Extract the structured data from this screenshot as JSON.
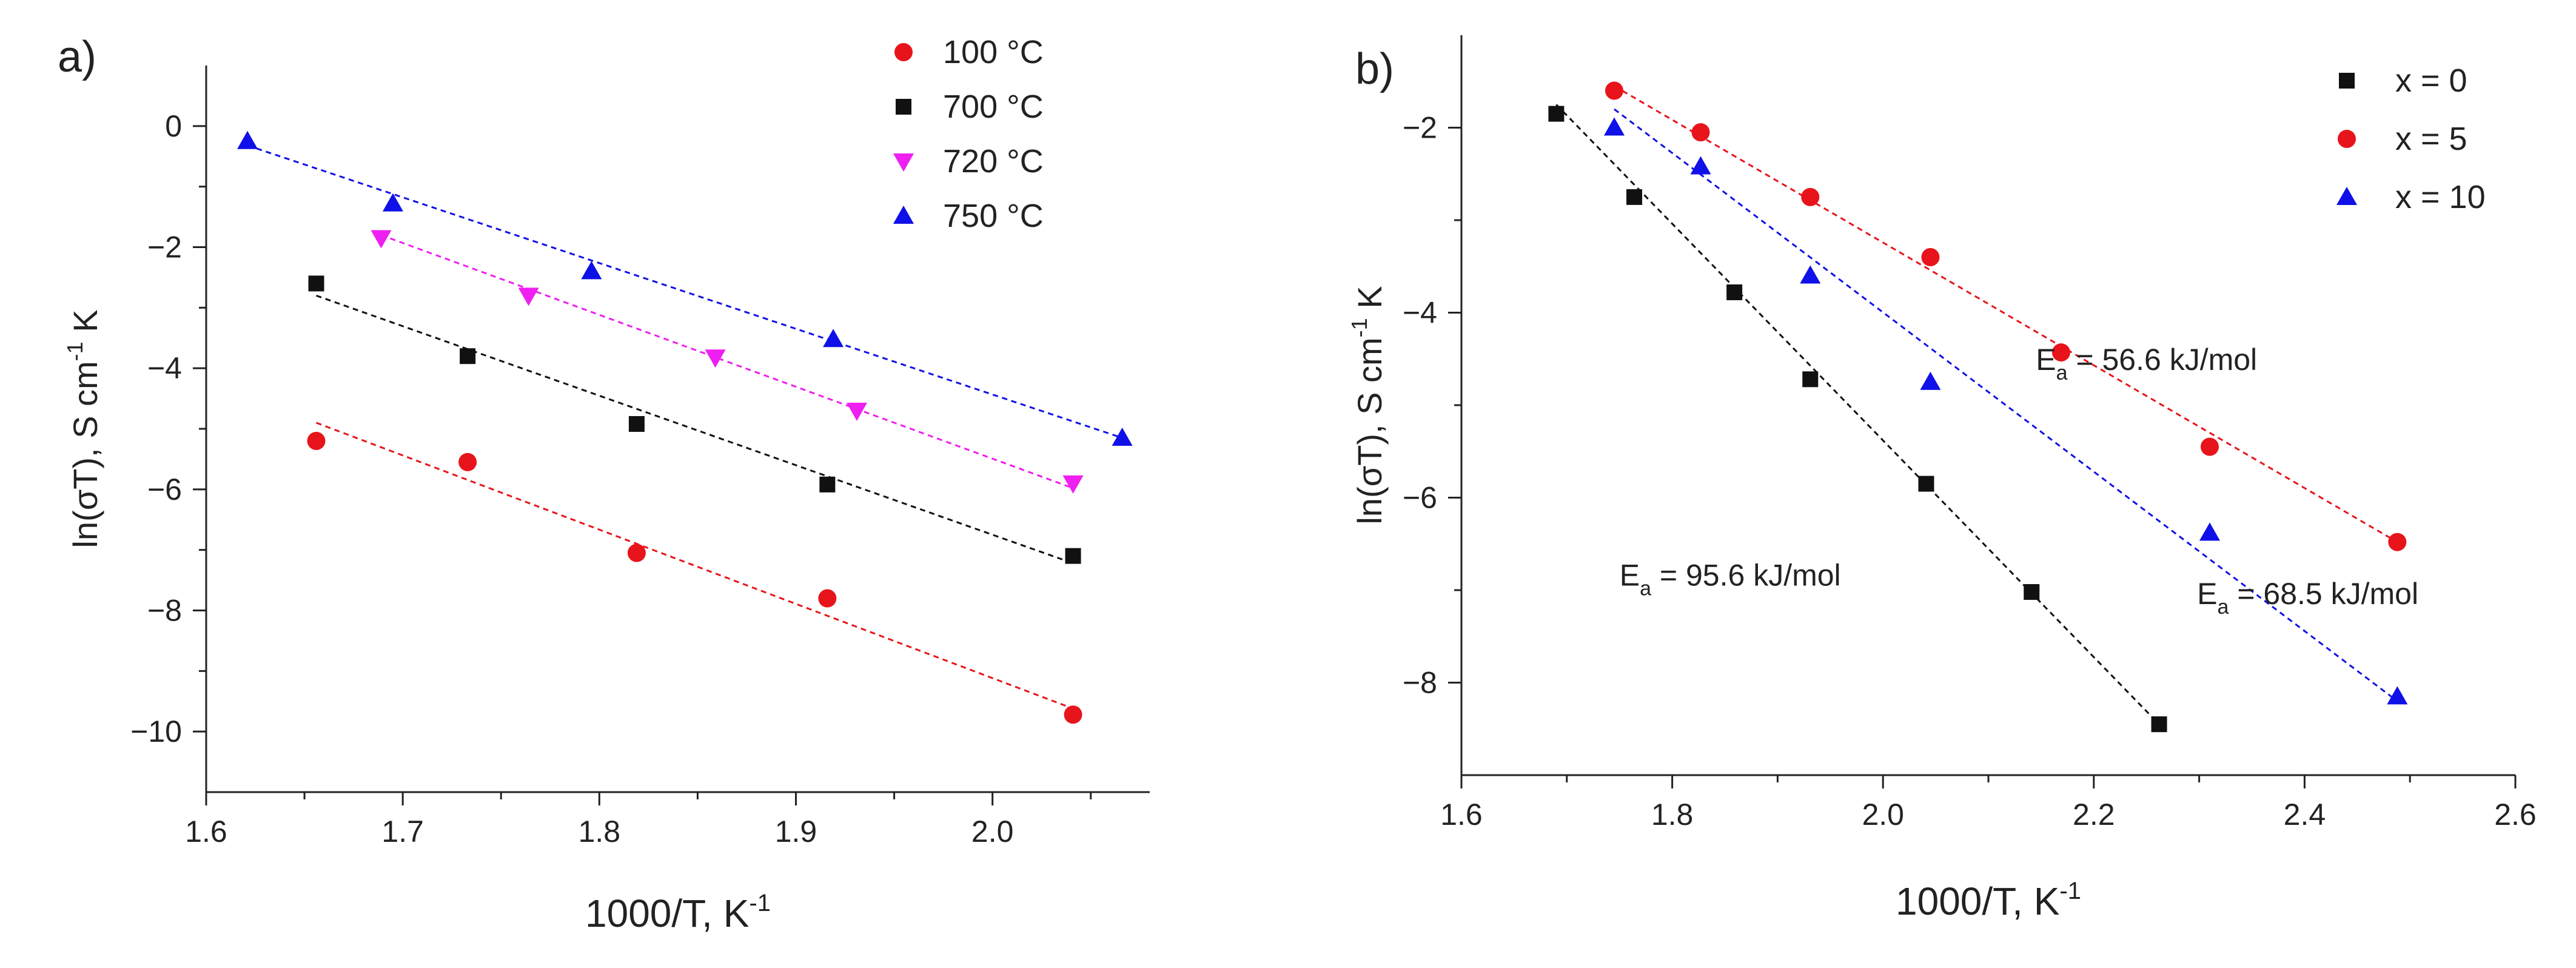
{
  "chart_data": [
    {
      "type": "scatter",
      "panel_label": "a)",
      "xlabel": "1000/T, K",
      "xlabel_sup": "-1",
      "ylabel": "ln(σT), S cm",
      "ylabel_sup": "-1",
      "ylabel_tail": " K",
      "xlim": [
        1.6,
        2.08
      ],
      "ylim": [
        -11,
        1
      ],
      "xticks": [
        1.6,
        1.7,
        1.8,
        1.9,
        2.0
      ],
      "xtick_labels": [
        "1.6",
        "1.7",
        "1.8",
        "1.9",
        "2.0"
      ],
      "yticks": [
        0,
        -2,
        -4,
        -6,
        -8,
        -10
      ],
      "ytick_labels": [
        "0",
        "−2",
        "−4",
        "−6",
        "−8",
        "−10"
      ],
      "legend_position": "top-right",
      "series": [
        {
          "name": "100 °C",
          "marker": "circle",
          "color": "#e8141b",
          "x": [
            1.656,
            1.733,
            1.819,
            1.916,
            2.041
          ],
          "y": [
            -5.2,
            -5.55,
            -7.05,
            -7.8,
            -9.72
          ],
          "fit": {
            "x": [
              1.656,
              2.041
            ],
            "y": [
              -4.9,
              -9.62
            ]
          }
        },
        {
          "name": "700 °C",
          "marker": "square",
          "color": "#111111",
          "x": [
            1.656,
            1.733,
            1.819,
            1.916,
            2.041
          ],
          "y": [
            -2.6,
            -3.8,
            -4.92,
            -5.92,
            -7.1
          ],
          "fit": {
            "x": [
              1.656,
              2.041
            ],
            "y": [
              -2.8,
              -7.22
            ]
          }
        },
        {
          "name": "720 °C",
          "marker": "triangle-down",
          "color": "#ee1ff0",
          "x": [
            1.689,
            1.764,
            1.859,
            1.931,
            2.041
          ],
          "y": [
            -1.85,
            -2.8,
            -3.82,
            -4.7,
            -5.9
          ],
          "fit": {
            "x": [
              1.689,
              2.041
            ],
            "y": [
              -1.8,
              -5.98
            ]
          }
        },
        {
          "name": "750 °C",
          "marker": "triangle-up",
          "color": "#1010e8",
          "x": [
            1.621,
            1.695,
            1.796,
            1.919,
            2.066
          ],
          "y": [
            -0.25,
            -1.28,
            -2.4,
            -3.52,
            -5.15
          ],
          "fit": {
            "x": [
              1.621,
              2.066
            ],
            "y": [
              -0.32,
              -5.15
            ]
          }
        }
      ],
      "annotations": []
    },
    {
      "type": "scatter",
      "panel_label": "b)",
      "xlabel": "1000/T, K",
      "xlabel_sup": "-1",
      "ylabel": "ln(σT), S cm",
      "ylabel_sup": "-1",
      "ylabel_tail": " K",
      "xlim": [
        1.6,
        2.6
      ],
      "ylim": [
        -9,
        -1
      ],
      "xticks": [
        1.6,
        1.8,
        2.0,
        2.2,
        2.4,
        2.6
      ],
      "xtick_labels": [
        "1.6",
        "1.8",
        "2.0",
        "2.2",
        "2.4",
        "2.6"
      ],
      "yticks": [
        -2,
        -4,
        -6,
        -8
      ],
      "ytick_labels": [
        "−2",
        "−4",
        "−6",
        "−8"
      ],
      "legend_position": "top-right",
      "series": [
        {
          "name": "x = 0",
          "marker": "square",
          "color": "#111111",
          "x": [
            1.69,
            1.764,
            1.859,
            1.931,
            2.041,
            2.141,
            2.262
          ],
          "y": [
            -1.85,
            -2.75,
            -3.78,
            -4.72,
            -5.85,
            -7.02,
            -8.45
          ],
          "fit": {
            "x": [
              1.69,
              2.262
            ],
            "y": [
              -1.75,
              -8.45
            ]
          }
        },
        {
          "name": "x = 5",
          "marker": "circle",
          "color": "#e8141b",
          "x": [
            1.745,
            1.827,
            1.931,
            2.045,
            2.169,
            2.31,
            2.488
          ],
          "y": [
            -1.6,
            -2.05,
            -2.75,
            -3.4,
            -4.43,
            -5.45,
            -6.48
          ],
          "fit": {
            "x": [
              1.745,
              2.488
            ],
            "y": [
              -1.55,
              -6.48
            ]
          }
        },
        {
          "name": "x = 10",
          "marker": "triangle-up",
          "color": "#1010e8",
          "x": [
            1.745,
            1.827,
            1.931,
            2.045,
            2.31,
            2.488
          ],
          "y": [
            -2.0,
            -2.42,
            -3.6,
            -4.75,
            -6.38,
            -8.15
          ],
          "fit": {
            "x": [
              1.745,
              2.488
            ],
            "y": [
              -1.8,
              -8.2
            ]
          }
        }
      ],
      "annotations": [
        {
          "name": "ea-x5",
          "x": 2.25,
          "y": -4.62,
          "pre": "E",
          "sub": "a",
          "post": " = 56.6 kJ/mol"
        },
        {
          "name": "ea-x0",
          "x": 1.855,
          "y": -6.95,
          "pre": "E",
          "sub": "a",
          "post": " = 95.6 kJ/mol"
        },
        {
          "name": "ea-x10",
          "x": 2.403,
          "y": -7.15,
          "pre": "E",
          "sub": "a",
          "post": " = 68.5 kJ/mol"
        }
      ]
    }
  ]
}
